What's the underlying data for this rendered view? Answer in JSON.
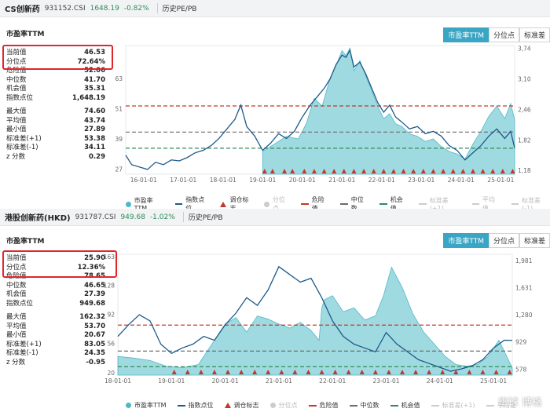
{
  "colors": {
    "pe_fill": "#8fd3dc",
    "pe_line": "#4fb8c8",
    "index_line": "#1d5a8a",
    "danger": "#c0392b",
    "median": "#6b6b6b",
    "chance": "#2e8b57",
    "tab_active": "#3aa6c4",
    "highlight_box": "#e0262b"
  },
  "panels": [
    {
      "name": "CS创新药",
      "code": "931152.CSI",
      "price": "1648.19",
      "change": "-0.82%",
      "tab": "历史PE/PB",
      "chart_title": "市盈率TTM",
      "tabs": [
        "市盈率TTM",
        "分位点",
        "标准差"
      ],
      "stats": [
        {
          "label": "当前值",
          "value": "46.53"
        },
        {
          "label": "分位点",
          "value": "72.64%"
        },
        {
          "label": "危险值",
          "value": "52.06"
        },
        {
          "label": "中位数",
          "value": "41.70"
        },
        {
          "label": "机会值",
          "value": "35.31"
        },
        {
          "label": "指数点位",
          "value": "1,648.19"
        }
      ],
      "stats2": [
        {
          "label": "最大值",
          "value": "74.60"
        },
        {
          "label": "平均值",
          "value": "43.74"
        },
        {
          "label": "最小值",
          "value": "27.89"
        },
        {
          "label": "标准差(+1)",
          "value": "53.38"
        },
        {
          "label": "标准差(-1)",
          "value": "34.11"
        },
        {
          "label": "z 分数",
          "value": "0.29"
        }
      ],
      "legend": [
        {
          "label": "市盈率TTM",
          "icon": "dot-icon",
          "muted": false
        },
        {
          "label": "指数点位",
          "icon": "line-icon",
          "muted": false
        },
        {
          "label": "调仓标志",
          "icon": "triangle-icon",
          "muted": false
        },
        {
          "label": "分位点",
          "icon": "dot-icon",
          "muted": true
        },
        {
          "label": "危险值",
          "icon": "dashed-red-icon",
          "muted": false
        },
        {
          "label": "中位数",
          "icon": "dashed-gray-icon",
          "muted": false
        },
        {
          "label": "机会值",
          "icon": "dashed-green-icon",
          "muted": false
        },
        {
          "label": "标准差(+1)",
          "icon": "dashed-gray-icon",
          "muted": true
        },
        {
          "label": "平均值",
          "icon": "dashed-gray-icon",
          "muted": true
        },
        {
          "label": "标准差(-1)",
          "icon": "dashed-gray-icon",
          "muted": true
        }
      ]
    },
    {
      "name": "港股创新药(HKD)",
      "code": "931787.CSI",
      "price": "949.68",
      "change": "-1.02%",
      "tab": "历史PE/PB",
      "chart_title": "市盈率TTM",
      "tabs": [
        "市盈率TTM",
        "分位点",
        "标准差"
      ],
      "stats": [
        {
          "label": "当前值",
          "value": "25.90"
        },
        {
          "label": "分位点",
          "value": "12.36%"
        },
        {
          "label": "危险值",
          "value": "78.65"
        },
        {
          "label": "中位数",
          "value": "46.65"
        },
        {
          "label": "机会值",
          "value": "27.39"
        },
        {
          "label": "指数点位",
          "value": "949.68"
        }
      ],
      "stats2": [
        {
          "label": "最大值",
          "value": "162.32"
        },
        {
          "label": "平均值",
          "value": "53.70"
        },
        {
          "label": "最小值",
          "value": "20.67"
        },
        {
          "label": "标准差(+1)",
          "value": "83.05"
        },
        {
          "label": "标准差(-1)",
          "value": "24.35"
        },
        {
          "label": "z 分数",
          "value": "-0.95"
        }
      ],
      "legend": [
        {
          "label": "市盈率TTM",
          "icon": "dot-icon",
          "muted": false
        },
        {
          "label": "指数点位",
          "icon": "line-icon",
          "muted": false
        },
        {
          "label": "调仓标志",
          "icon": "triangle-icon",
          "muted": false
        },
        {
          "label": "分位点",
          "icon": "dot-icon",
          "muted": true
        },
        {
          "label": "危险值",
          "icon": "dashed-red-icon",
          "muted": false
        },
        {
          "label": "中位数",
          "icon": "dashed-gray-icon",
          "muted": false
        },
        {
          "label": "机会值",
          "icon": "dashed-green-icon",
          "muted": false
        },
        {
          "label": "标准差(+1)",
          "icon": "dashed-gray-icon",
          "muted": true
        },
        {
          "label": "平均值",
          "icon": "dashed-gray-icon",
          "muted": true
        }
      ]
    }
  ],
  "watermark": "雪球 博格",
  "chart_data": [
    {
      "type": "area",
      "title": "市盈率TTM",
      "x_ticks": [
        "16-01-01",
        "17-01-01",
        "18-01-01",
        "19-01-01",
        "20-01-01",
        "21-01-01",
        "22-01-01",
        "23-01-01",
        "24-01-01",
        "25-01-01"
      ],
      "x_range": [
        2015.55,
        2025.35
      ],
      "y_left_ticks": [
        27,
        39,
        51,
        63
      ],
      "y_left_range": [
        25,
        76
      ],
      "y_right_ticks": [
        "1,18",
        "1,82",
        "2,46",
        "3,10",
        "3,74"
      ],
      "y_right_range": [
        1.1,
        3.8
      ],
      "reference_lines": {
        "危险值": 52.06,
        "中位数": 41.7,
        "机会值": 35.31
      },
      "pe_series_visible_from": 2019.0,
      "series": [
        {
          "name": "市盈率TTM",
          "x": [
            2019.0,
            2019.3,
            2019.6,
            2019.9,
            2020.1,
            2020.3,
            2020.5,
            2020.7,
            2020.85,
            2021.0,
            2021.1,
            2021.2,
            2021.3,
            2021.45,
            2021.6,
            2021.75,
            2021.9,
            2022.05,
            2022.2,
            2022.35,
            2022.5,
            2022.7,
            2022.9,
            2023.1,
            2023.3,
            2023.5,
            2023.7,
            2023.9,
            2024.1,
            2024.3,
            2024.5,
            2024.7,
            2024.9,
            2025.1,
            2025.25,
            2025.35
          ],
          "y": [
            34,
            37,
            40,
            39,
            45,
            55,
            52,
            63,
            68,
            74,
            72,
            75,
            66,
            70,
            64,
            58,
            52,
            47,
            49,
            45,
            44,
            41,
            40,
            38,
            39,
            36,
            34,
            33,
            31,
            37,
            42,
            48,
            52,
            47,
            53,
            46.53
          ]
        },
        {
          "name": "指数点位",
          "x": [
            2015.55,
            2015.7,
            2015.9,
            2016.1,
            2016.3,
            2016.5,
            2016.7,
            2016.9,
            2017.1,
            2017.3,
            2017.5,
            2017.7,
            2017.9,
            2018.1,
            2018.3,
            2018.45,
            2018.6,
            2018.8,
            2019.0,
            2019.2,
            2019.4,
            2019.6,
            2019.8,
            2020.0,
            2020.2,
            2020.4,
            2020.55,
            2020.7,
            2020.85,
            2021.0,
            2021.1,
            2021.2,
            2021.3,
            2021.45,
            2021.6,
            2021.75,
            2021.9,
            2022.05,
            2022.2,
            2022.35,
            2022.5,
            2022.7,
            2022.9,
            2023.1,
            2023.3,
            2023.5,
            2023.7,
            2023.9,
            2024.1,
            2024.3,
            2024.5,
            2024.7,
            2024.9,
            2025.1,
            2025.25,
            2025.35
          ],
          "y": [
            1.5,
            1.3,
            1.25,
            1.2,
            1.35,
            1.3,
            1.4,
            1.38,
            1.45,
            1.55,
            1.6,
            1.7,
            1.85,
            2.05,
            2.25,
            2.55,
            2.1,
            1.9,
            1.6,
            1.75,
            1.95,
            1.85,
            2.0,
            2.3,
            2.55,
            2.75,
            2.9,
            3.1,
            3.4,
            3.6,
            3.55,
            3.7,
            3.35,
            3.45,
            3.2,
            2.9,
            2.6,
            2.4,
            2.55,
            2.3,
            2.2,
            2.05,
            2.1,
            1.95,
            2.0,
            1.9,
            1.7,
            1.6,
            1.4,
            1.55,
            1.7,
            1.9,
            2.05,
            1.85,
            2.0,
            1.65
          ]
        }
      ],
      "rebalance_markers_x": [
        2019.05,
        2019.25,
        2019.55,
        2019.75,
        2020.05,
        2020.3,
        2020.55,
        2020.8,
        2021.05,
        2021.3,
        2021.55,
        2021.8,
        2022.05,
        2022.3,
        2022.55,
        2022.8,
        2023.05,
        2023.3,
        2023.55,
        2023.8,
        2024.05,
        2024.3,
        2024.55,
        2024.8,
        2025.05,
        2025.3
      ]
    },
    {
      "type": "area",
      "title": "市盈率TTM",
      "x_ticks": [
        "18-01-01",
        "19-01-01",
        "20-01-01",
        "21-01-01",
        "22-01-01",
        "23-01-01",
        "24-01-01",
        "25-01-01"
      ],
      "x_range": [
        2018.0,
        2025.35
      ],
      "y_left_ticks": [
        20,
        56,
        92,
        128,
        163
      ],
      "y_left_range": [
        17,
        166
      ],
      "y_right_ticks": [
        "578",
        "929",
        "1,280",
        "1,631",
        "1,981"
      ],
      "y_right_range": [
        500,
        2060
      ],
      "reference_lines": {
        "危险值": 78.65,
        "中位数": 46.65,
        "机会值": 27.39
      },
      "series": [
        {
          "name": "市盈率TTM",
          "x": [
            2018.0,
            2018.3,
            2018.6,
            2018.9,
            2019.2,
            2019.5,
            2019.8,
            2020.0,
            2020.2,
            2020.4,
            2020.6,
            2020.8,
            2021.0,
            2021.2,
            2021.4,
            2021.6,
            2021.75,
            2021.8,
            2021.85,
            2022.0,
            2022.2,
            2022.4,
            2022.6,
            2022.8,
            2022.95,
            2023.1,
            2023.3,
            2023.5,
            2023.7,
            2023.9,
            2024.1,
            2024.3,
            2024.5,
            2024.7,
            2024.9,
            2025.1,
            2025.35
          ],
          "y": [
            40,
            38,
            35,
            28,
            26,
            30,
            60,
            80,
            88,
            70,
            90,
            86,
            80,
            75,
            82,
            72,
            60,
            100,
            110,
            115,
            95,
            100,
            85,
            90,
            115,
            150,
            125,
            92,
            70,
            55,
            40,
            30,
            28,
            30,
            40,
            60,
            25.9
          ]
        },
        {
          "name": "指数点位",
          "x": [
            2018.0,
            2018.2,
            2018.4,
            2018.6,
            2018.8,
            2019.0,
            2019.2,
            2019.4,
            2019.6,
            2019.8,
            2020.0,
            2020.2,
            2020.4,
            2020.6,
            2020.8,
            2021.0,
            2021.2,
            2021.4,
            2021.6,
            2021.8,
            2022.0,
            2022.2,
            2022.4,
            2022.6,
            2022.8,
            2023.0,
            2023.2,
            2023.4,
            2023.6,
            2023.8,
            2024.0,
            2024.2,
            2024.4,
            2024.6,
            2024.8,
            2025.0,
            2025.2,
            2025.35
          ],
          "y": [
            1000,
            1150,
            1280,
            1200,
            900,
            780,
            850,
            900,
            1000,
            950,
            1150,
            1300,
            1500,
            1400,
            1600,
            1900,
            1800,
            1700,
            1750,
            1500,
            1200,
            1000,
            900,
            850,
            800,
            1050,
            900,
            800,
            700,
            650,
            600,
            550,
            580,
            620,
            700,
            850,
            950,
            949.68
          ]
        }
      ],
      "rebalance_markers_x": [
        2019.05,
        2019.3,
        2019.55,
        2019.8,
        2020.05,
        2020.3,
        2020.55,
        2020.8,
        2021.05,
        2021.3,
        2021.55,
        2021.8,
        2022.05,
        2022.3,
        2022.55,
        2022.8,
        2023.05,
        2023.3,
        2023.55,
        2023.8,
        2024.05,
        2024.3,
        2024.55,
        2024.8,
        2025.05,
        2025.3
      ]
    }
  ]
}
